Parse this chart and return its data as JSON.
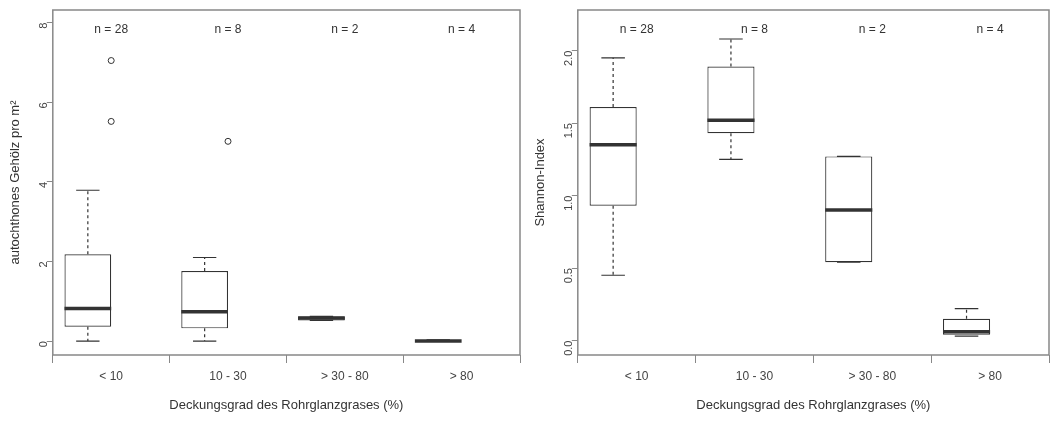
{
  "chart_data": [
    {
      "type": "box",
      "xlabel": "Deckungsgrad des Rohrglanzgrases (%)",
      "ylabel": "autochthones Gehölz pro m²",
      "categories": [
        "< 10",
        "10 - 30",
        "> 30 - 80",
        "> 80"
      ],
      "ylim": [
        -0.35,
        8.32
      ],
      "yticks": [
        0,
        2,
        4,
        6,
        8
      ],
      "grid": false,
      "series": [
        {
          "color": "#333333",
          "boxes": [
            {
              "low": 0,
              "q1": 0.36,
              "median": 0.82,
              "q3": 2.18,
              "high": 3.79,
              "outliers": [
                5.52,
                7.05
              ]
            },
            {
              "low": 0,
              "q1": 0.32,
              "median": 0.74,
              "q3": 1.76,
              "high": 2.1,
              "outliers": [
                5.02
              ]
            },
            {
              "low": 0.52,
              "q1": 0.52,
              "median": 0.58,
              "q3": 0.62,
              "high": 0.62
            },
            {
              "low": 0,
              "q1": 0,
              "median": 0,
              "q3": 0.02,
              "high": 0.03
            }
          ]
        }
      ],
      "annotations": [
        "n = 28",
        "n = 8",
        "n = 2",
        "n = 4"
      ]
    },
    {
      "type": "box",
      "xlabel": "Deckungsgrad des Rohrglanzgrases (%)",
      "ylabel": "Shannon-Index",
      "categories": [
        "< 10",
        "10 - 30",
        "> 30 - 80",
        "> 80"
      ],
      "ylim": [
        -0.1,
        2.28
      ],
      "yticks": [
        {
          "value": 0,
          "label": "0.0"
        },
        {
          "value": 0.5,
          "label": "0.5"
        },
        {
          "value": 1,
          "label": "1.0"
        },
        {
          "value": 1.5,
          "label": "1.5"
        },
        {
          "value": 2,
          "label": "2.0"
        }
      ],
      "grid": false,
      "series": [
        {
          "color": "#333333",
          "boxes": [
            {
              "low": 0.45,
              "q1": 0.93,
              "median": 1.35,
              "q3": 1.61,
              "high": 1.95
            },
            {
              "low": 1.25,
              "q1": 1.43,
              "median": 1.52,
              "q3": 1.89,
              "high": 2.08
            },
            {
              "low": 0.54,
              "q1": 0.54,
              "median": 0.9,
              "q3": 1.27,
              "high": 1.27
            },
            {
              "low": 0.03,
              "q1": 0.04,
              "median": 0.06,
              "q3": 0.15,
              "high": 0.22
            }
          ]
        }
      ],
      "annotations": [
        "n = 28",
        "n = 8",
        "n = 2",
        "n = 4"
      ]
    }
  ]
}
